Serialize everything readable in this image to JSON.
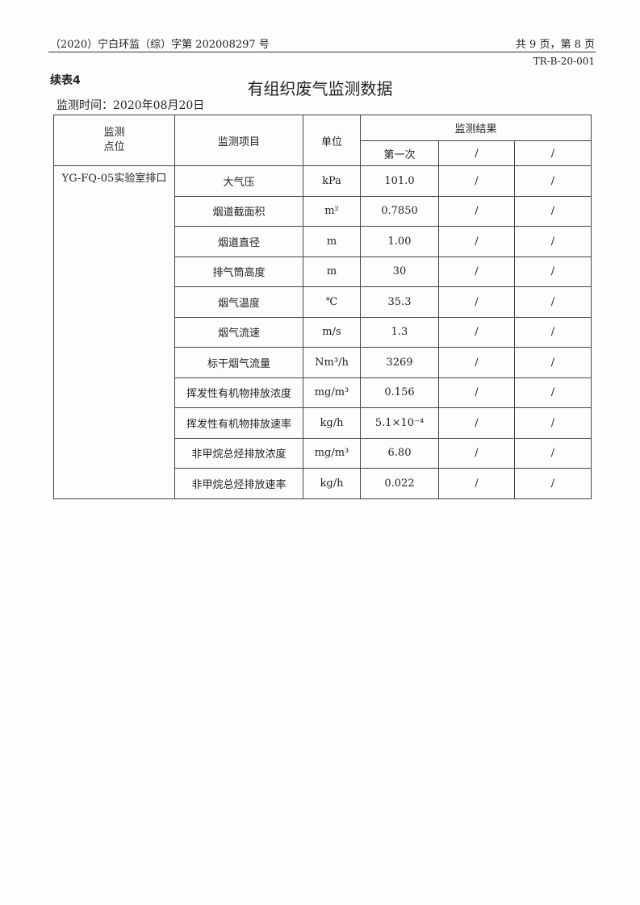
{
  "header": {
    "doc_no": "（2020）宁白环监（综）字第 202008297 号",
    "page": "共 9 页，第 8 页",
    "form_code": "TR-B-20-001"
  },
  "table_label": "续表4",
  "title": "有组织废气监测数据",
  "date": "监测时间：2020年08月20日",
  "columns": {
    "site": "监测\n点位",
    "item": "监测项目",
    "unit": "单位",
    "results": "监测结果",
    "r1": "第一次",
    "r2": "/",
    "r3": "/"
  },
  "site": "YG-FQ-05实验室排口",
  "rows": [
    {
      "item": "大气压",
      "unit": "kPa",
      "v1": "101.0",
      "v2": "/",
      "v3": "/"
    },
    {
      "item": "烟道截面积",
      "unit": "m²",
      "v1": "0.7850",
      "v2": "/",
      "v3": "/"
    },
    {
      "item": "烟道直径",
      "unit": "m",
      "v1": "1.00",
      "v2": "/",
      "v3": "/"
    },
    {
      "item": "排气筒高度",
      "unit": "m",
      "v1": "30",
      "v2": "/",
      "v3": "/"
    },
    {
      "item": "烟气温度",
      "unit": "℃",
      "v1": "35.3",
      "v2": "/",
      "v3": "/"
    },
    {
      "item": "烟气流速",
      "unit": "m/s",
      "v1": "1.3",
      "v2": "/",
      "v3": "/"
    },
    {
      "item": "标干烟气流量",
      "unit": "Nm³/h",
      "v1": "3269",
      "v2": "/",
      "v3": "/"
    },
    {
      "item": "挥发性有机物排放浓度",
      "unit": "mg/m³",
      "v1": "0.156",
      "v2": "/",
      "v3": "/"
    },
    {
      "item": "挥发性有机物排放速率",
      "unit": "kg/h",
      "v1": "5.1×10⁻⁴",
      "v2": "/",
      "v3": "/"
    },
    {
      "item": "非甲烷总烃排放浓度",
      "unit": "mg/m³",
      "v1": "6.80",
      "v2": "/",
      "v3": "/"
    },
    {
      "item": "非甲烷总烃排放速率",
      "unit": "kg/h",
      "v1": "0.022",
      "v2": "/",
      "v3": "/"
    }
  ]
}
